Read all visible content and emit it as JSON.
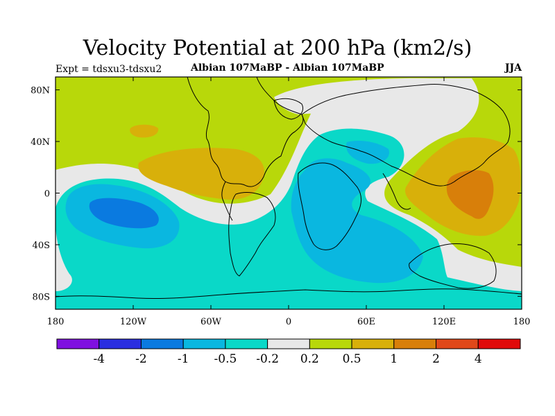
{
  "header": {
    "title": "Velocity Potential at 200 hPa (km2/s)",
    "experiment": "Expt = tdsxu3-tdsxu2",
    "period": "Albian   107MaBP - Albian   107MaBP",
    "season": "JJA"
  },
  "axes": {
    "x_ticks": [
      {
        "label": "180",
        "value": -180
      },
      {
        "label": "120W",
        "value": -120
      },
      {
        "label": "60W",
        "value": -60
      },
      {
        "label": "0",
        "value": 0
      },
      {
        "label": "60E",
        "value": 60
      },
      {
        "label": "120E",
        "value": 120
      },
      {
        "label": "180",
        "value": 180
      }
    ],
    "y_ticks": [
      {
        "label": "80N",
        "value": 80
      },
      {
        "label": "40N",
        "value": 40
      },
      {
        "label": "0",
        "value": 0
      },
      {
        "label": "40S",
        "value": -40
      },
      {
        "label": "80S",
        "value": -80
      }
    ],
    "lon_range": [
      -180,
      180
    ],
    "lat_range": [
      -90,
      90
    ]
  },
  "colorbar": {
    "colors": [
      "#7f10e0",
      "#2a2ee0",
      "#0a7ae0",
      "#0ab7e0",
      "#0ad8c8",
      "#e8e8e8",
      "#b8d80a",
      "#d8b00a",
      "#d87f0a",
      "#e0481a",
      "#e00a0a"
    ],
    "labels": [
      "-4",
      "-2",
      "-1",
      "-0.5",
      "-0.2",
      "0.2",
      "0.5",
      "1",
      "2",
      "4"
    ]
  },
  "map": {
    "projection": "cylindrical-equidistant",
    "field_colors": {
      "neg_0_5_to_1": "#0a7ae0",
      "neg_0_2_to_0_5": "#0ab7e0",
      "neg_0_2": "#0ad8c8",
      "near_zero": "#e8e8e8",
      "pos_0_2_to_0_5": "#b8d80a",
      "pos_0_5_to_1": "#d8b00a",
      "pos_1_to_2": "#d87f0a"
    },
    "coastline_color": "#000000"
  }
}
